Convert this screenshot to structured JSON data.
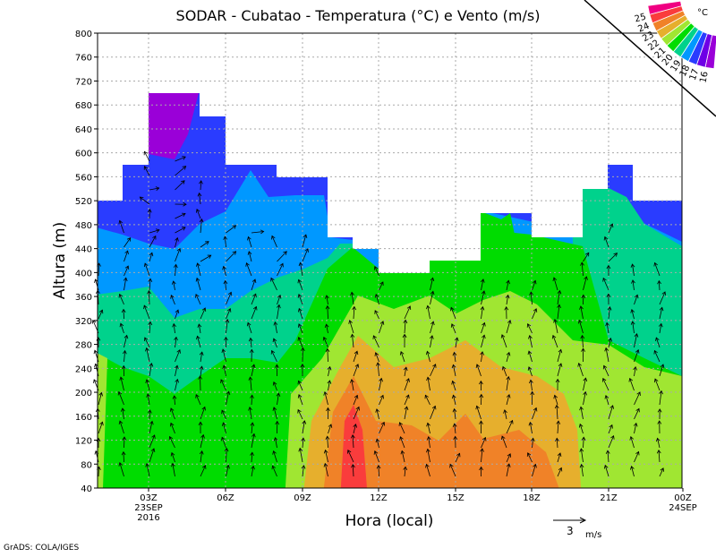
{
  "chart_data": {
    "type": "heatmap",
    "title": "SODAR - Cubatao - Temperatura (°C) e Vento (m/s)",
    "xlabel": "Hora (local)",
    "ylabel": "Altura (m)",
    "ylim": [
      40,
      800
    ],
    "yticks": [
      "40",
      "80",
      "120",
      "160",
      "200",
      "240",
      "280",
      "320",
      "360",
      "400",
      "440",
      "480",
      "520",
      "560",
      "600",
      "640",
      "680",
      "720",
      "760",
      "800"
    ],
    "xticks": [
      {
        "label": "03Z",
        "sub": [
          "23SEP",
          "2016"
        ]
      },
      {
        "label": "06Z",
        "sub": []
      },
      {
        "label": "09Z",
        "sub": []
      },
      {
        "label": "12Z",
        "sub": []
      },
      {
        "label": "15Z",
        "sub": []
      },
      {
        "label": "18Z",
        "sub": []
      },
      {
        "label": "21Z",
        "sub": []
      },
      {
        "label": "00Z",
        "sub": [
          "24SEP"
        ]
      }
    ],
    "grid": true,
    "colorbar": {
      "unit": "°C",
      "levels": [
        "16",
        "17",
        "18",
        "19",
        "20",
        "21",
        "22",
        "23",
        "24",
        "25"
      ],
      "colors": [
        "#9a00d8",
        "#6e00e6",
        "#2a3cff",
        "#0098ff",
        "#00d28c",
        "#00dc00",
        "#a0e632",
        "#e6af2d",
        "#f08228",
        "#fa3c3c",
        "#f00082"
      ]
    },
    "vector_reference": {
      "value": "3",
      "unit": "m/s"
    }
  },
  "footer": "GrADS: COLA/IGES"
}
